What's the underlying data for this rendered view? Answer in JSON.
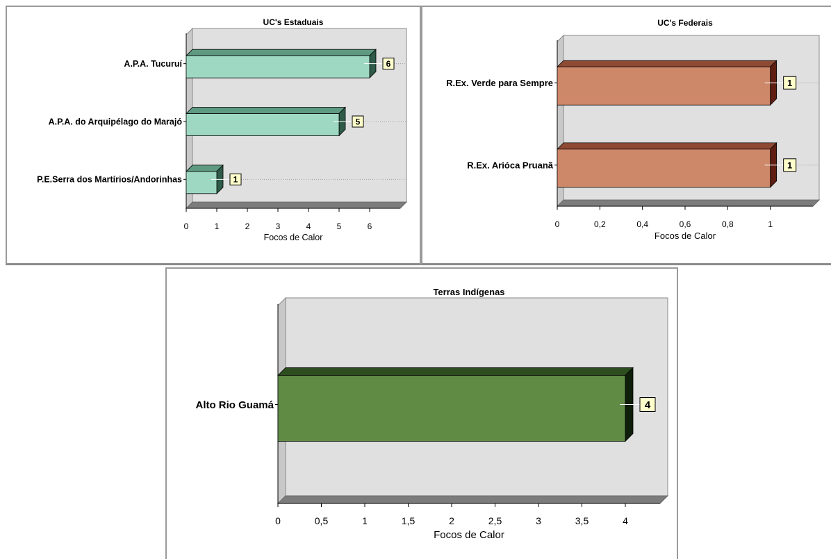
{
  "chart_data": [
    {
      "type": "bar",
      "orientation": "horizontal",
      "title": "UC's Estaduais",
      "xlabel": "Focos de Calor",
      "ylabel": "",
      "categories": [
        "A.P.A. Tucuruí",
        "A.P.A. do Arquipélago do Marajó",
        "P.E.Serra dos Martírios/Andorinhas"
      ],
      "values": [
        6,
        5,
        1
      ],
      "data_labels": [
        "6",
        "5",
        "1"
      ],
      "xlim": [
        0,
        7
      ],
      "xticks": [
        "0",
        "1",
        "2",
        "3",
        "4",
        "5",
        "6"
      ],
      "xtick_values": [
        0,
        1,
        2,
        3,
        4,
        5,
        6
      ],
      "colors": {
        "bar": "#9ed8c3",
        "bar_top": "#5e9a82",
        "bar_side": "#2f5c48"
      }
    },
    {
      "type": "bar",
      "orientation": "horizontal",
      "title": "UC's Federais",
      "xlabel": "Focos de Calor",
      "ylabel": "",
      "categories": [
        "R.Ex. Verde para Sempre",
        "R.Ex. Arióca Pruanã"
      ],
      "values": [
        1,
        1
      ],
      "data_labels": [
        "1",
        "1"
      ],
      "xlim": [
        0,
        1.2
      ],
      "xticks": [
        "0",
        "0,2",
        "0,4",
        "0,6",
        "0,8",
        "1"
      ],
      "xtick_values": [
        0,
        0.2,
        0.4,
        0.6,
        0.8,
        1
      ],
      "colors": {
        "bar": "#cd8769",
        "bar_top": "#8e4a33",
        "bar_side": "#5e1f12"
      }
    },
    {
      "type": "bar",
      "orientation": "horizontal",
      "title": "Terras Indígenas",
      "xlabel": "Focos de Calor",
      "ylabel": "",
      "categories": [
        "Alto Rio Guamá"
      ],
      "values": [
        4
      ],
      "data_labels": [
        "4"
      ],
      "xlim": [
        0,
        4.4
      ],
      "xticks": [
        "0",
        "0,5",
        "1",
        "1,5",
        "2",
        "2,5",
        "3",
        "3,5",
        "4"
      ],
      "xtick_values": [
        0,
        0.5,
        1,
        1.5,
        2,
        2.5,
        3,
        3.5,
        4
      ],
      "colors": {
        "bar": "#5f8b45",
        "bar_top": "#2d4d1f",
        "bar_side": "#0f1f0a"
      }
    }
  ],
  "colors": {
    "plot_back": "#e0e0e0",
    "plot_wall": "#c8c8c8",
    "plot_floor": "#7c7c7c",
    "label_box": "#ffffcc",
    "grid_line": "#a0a0a0"
  }
}
